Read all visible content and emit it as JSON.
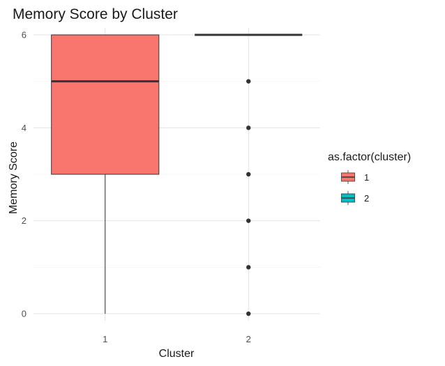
{
  "chart_data": {
    "type": "box",
    "title": "Memory Score by Cluster",
    "xlabel": "Cluster",
    "ylabel": "Memory Score",
    "categories": [
      "1",
      "2"
    ],
    "ylim": [
      -0.15,
      6.15
    ],
    "yticks": [
      0,
      2,
      4,
      6
    ],
    "grid": true,
    "legend": {
      "title": "as.factor(cluster)",
      "placement": "right",
      "entries": [
        {
          "label": "1",
          "color": "#F8766D"
        },
        {
          "label": "2",
          "color": "#00BFC4"
        }
      ]
    },
    "boxes": [
      {
        "category": "1",
        "min": 0,
        "q1": 3,
        "median": 5,
        "q3": 6,
        "max": 6,
        "outliers": [],
        "color": "#F8766D"
      },
      {
        "category": "2",
        "min": 6,
        "q1": 6,
        "median": 6,
        "q3": 6,
        "max": 6,
        "outliers": [
          0,
          1,
          2,
          3,
          4,
          5
        ],
        "color": "#00BFC4"
      }
    ]
  }
}
